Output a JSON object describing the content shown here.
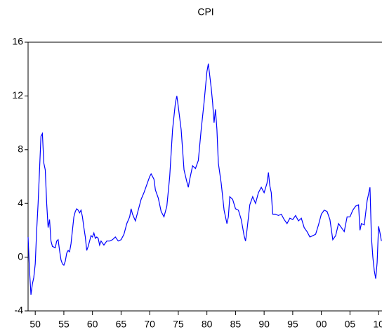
{
  "chart_data": {
    "type": "line",
    "title": "CPI",
    "x": [
      1948.75,
      1949.0,
      1949.25,
      1949.5,
      1949.75,
      1950.0,
      1950.25,
      1950.5,
      1950.75,
      1951.0,
      1951.25,
      1951.5,
      1951.75,
      1952.0,
      1952.25,
      1952.5,
      1952.75,
      1953.0,
      1953.5,
      1953.75,
      1954.0,
      1954.25,
      1954.5,
      1954.75,
      1955.0,
      1955.25,
      1955.5,
      1955.75,
      1956.0,
      1956.25,
      1956.5,
      1956.75,
      1957.0,
      1957.25,
      1957.5,
      1957.75,
      1958.0,
      1958.25,
      1958.5,
      1958.75,
      1959.0,
      1959.25,
      1959.5,
      1959.75,
      1960.0,
      1960.25,
      1960.5,
      1960.75,
      1961.0,
      1961.25,
      1961.5,
      1962.0,
      1962.5,
      1963.0,
      1963.5,
      1964.0,
      1964.5,
      1965.0,
      1965.5,
      1966.0,
      1966.5,
      1966.75,
      1967.0,
      1967.5,
      1968.0,
      1968.5,
      1969.0,
      1969.5,
      1970.0,
      1970.25,
      1970.75,
      1971.0,
      1971.5,
      1972.0,
      1972.5,
      1973.0,
      1973.5,
      1974.0,
      1974.5,
      1974.75,
      1975.0,
      1975.5,
      1976.0,
      1976.5,
      1976.75,
      1977.0,
      1977.5,
      1978.0,
      1978.5,
      1979.0,
      1979.5,
      1980.0,
      1980.25,
      1980.75,
      1981.0,
      1981.25,
      1981.5,
      1981.75,
      1982.0,
      1982.5,
      1983.0,
      1983.5,
      1983.75,
      1984.0,
      1984.5,
      1985.0,
      1985.5,
      1986.0,
      1986.5,
      1986.75,
      1987.0,
      1987.5,
      1988.0,
      1988.5,
      1989.0,
      1989.5,
      1990.0,
      1990.5,
      1990.75,
      1991.0,
      1991.25,
      1991.5,
      1992.0,
      1992.5,
      1993.0,
      1993.5,
      1994.0,
      1994.5,
      1995.0,
      1995.5,
      1996.0,
      1996.5,
      1997.0,
      1997.5,
      1998.0,
      1998.5,
      1999.0,
      1999.5,
      2000.0,
      2000.5,
      2001.0,
      2001.5,
      2002.0,
      2002.5,
      2003.0,
      2003.5,
      2004.0,
      2004.5,
      2005.0,
      2005.5,
      2006.0,
      2006.5,
      2006.75,
      2007.0,
      2007.5,
      2008.0,
      2008.5,
      2008.75,
      2009.0,
      2009.25,
      2009.5,
      2009.75,
      2010.0,
      2010.25,
      2010.5
    ],
    "series": [
      {
        "name": "CPI",
        "color": "#0000ff",
        "values": [
          1.5,
          -1,
          -2.8,
          -2,
          -1.5,
          -0.5,
          2,
          4,
          6.5,
          9,
          9.2,
          7,
          6.5,
          4,
          2.2,
          2.8,
          1.2,
          0.8,
          0.7,
          1.2,
          1.3,
          0.5,
          -0.2,
          -0.5,
          -0.6,
          -0.3,
          0.3,
          0.5,
          0.4,
          1,
          2,
          3,
          3.4,
          3.6,
          3.5,
          3.3,
          3.5,
          3,
          2.2,
          1.5,
          0.5,
          0.8,
          1.2,
          1.6,
          1.5,
          1.8,
          1.4,
          1.5,
          1.4,
          0.9,
          1.2,
          0.9,
          1.2,
          1.2,
          1.3,
          1.5,
          1.2,
          1.3,
          1.7,
          2.5,
          3,
          3.6,
          3.2,
          2.7,
          3.5,
          4.3,
          4.8,
          5.4,
          6,
          6.2,
          5.8,
          5,
          4.4,
          3.4,
          3,
          3.8,
          6,
          9.5,
          11.5,
          12,
          11.2,
          9.5,
          6.5,
          5.6,
          5.2,
          5.8,
          6.8,
          6.6,
          7.2,
          9.5,
          11.5,
          13.8,
          14.4,
          12.6,
          11.5,
          10,
          11,
          9.5,
          7,
          5.5,
          3.5,
          2.5,
          3,
          4.5,
          4.3,
          3.6,
          3.5,
          2.8,
          1.6,
          1.2,
          2,
          3.9,
          4.5,
          4,
          4.8,
          5.2,
          4.8,
          5.5,
          6.3,
          5.3,
          4.8,
          3.2,
          3.2,
          3.1,
          3.2,
          2.8,
          2.5,
          2.9,
          2.8,
          3.1,
          2.7,
          2.9,
          2.2,
          1.9,
          1.5,
          1.6,
          1.7,
          2.4,
          3.2,
          3.5,
          3.4,
          2.8,
          1.3,
          1.6,
          2.5,
          2.2,
          1.9,
          3,
          3,
          3.5,
          3.8,
          3.9,
          2,
          2.5,
          2.4,
          4.2,
          5.2,
          1.5,
          0,
          -1,
          -1.6,
          -0.4,
          2.3,
          1.8,
          1.2
        ]
      }
    ],
    "xlim": [
      1948.75,
      2010.6
    ],
    "ylim": [
      -4,
      16
    ],
    "xticks": [
      {
        "value": 1950,
        "label": "50"
      },
      {
        "value": 1955,
        "label": "55"
      },
      {
        "value": 1960,
        "label": "60"
      },
      {
        "value": 1965,
        "label": "65"
      },
      {
        "value": 1970,
        "label": "70"
      },
      {
        "value": 1975,
        "label": "75"
      },
      {
        "value": 1980,
        "label": "80"
      },
      {
        "value": 1985,
        "label": "85"
      },
      {
        "value": 1990,
        "label": "90"
      },
      {
        "value": 1995,
        "label": "95"
      },
      {
        "value": 2000,
        "label": "00"
      },
      {
        "value": 2005,
        "label": "05"
      },
      {
        "value": 2010,
        "label": "10"
      }
    ],
    "yticks": [
      -4,
      0,
      4,
      8,
      12,
      16
    ]
  }
}
